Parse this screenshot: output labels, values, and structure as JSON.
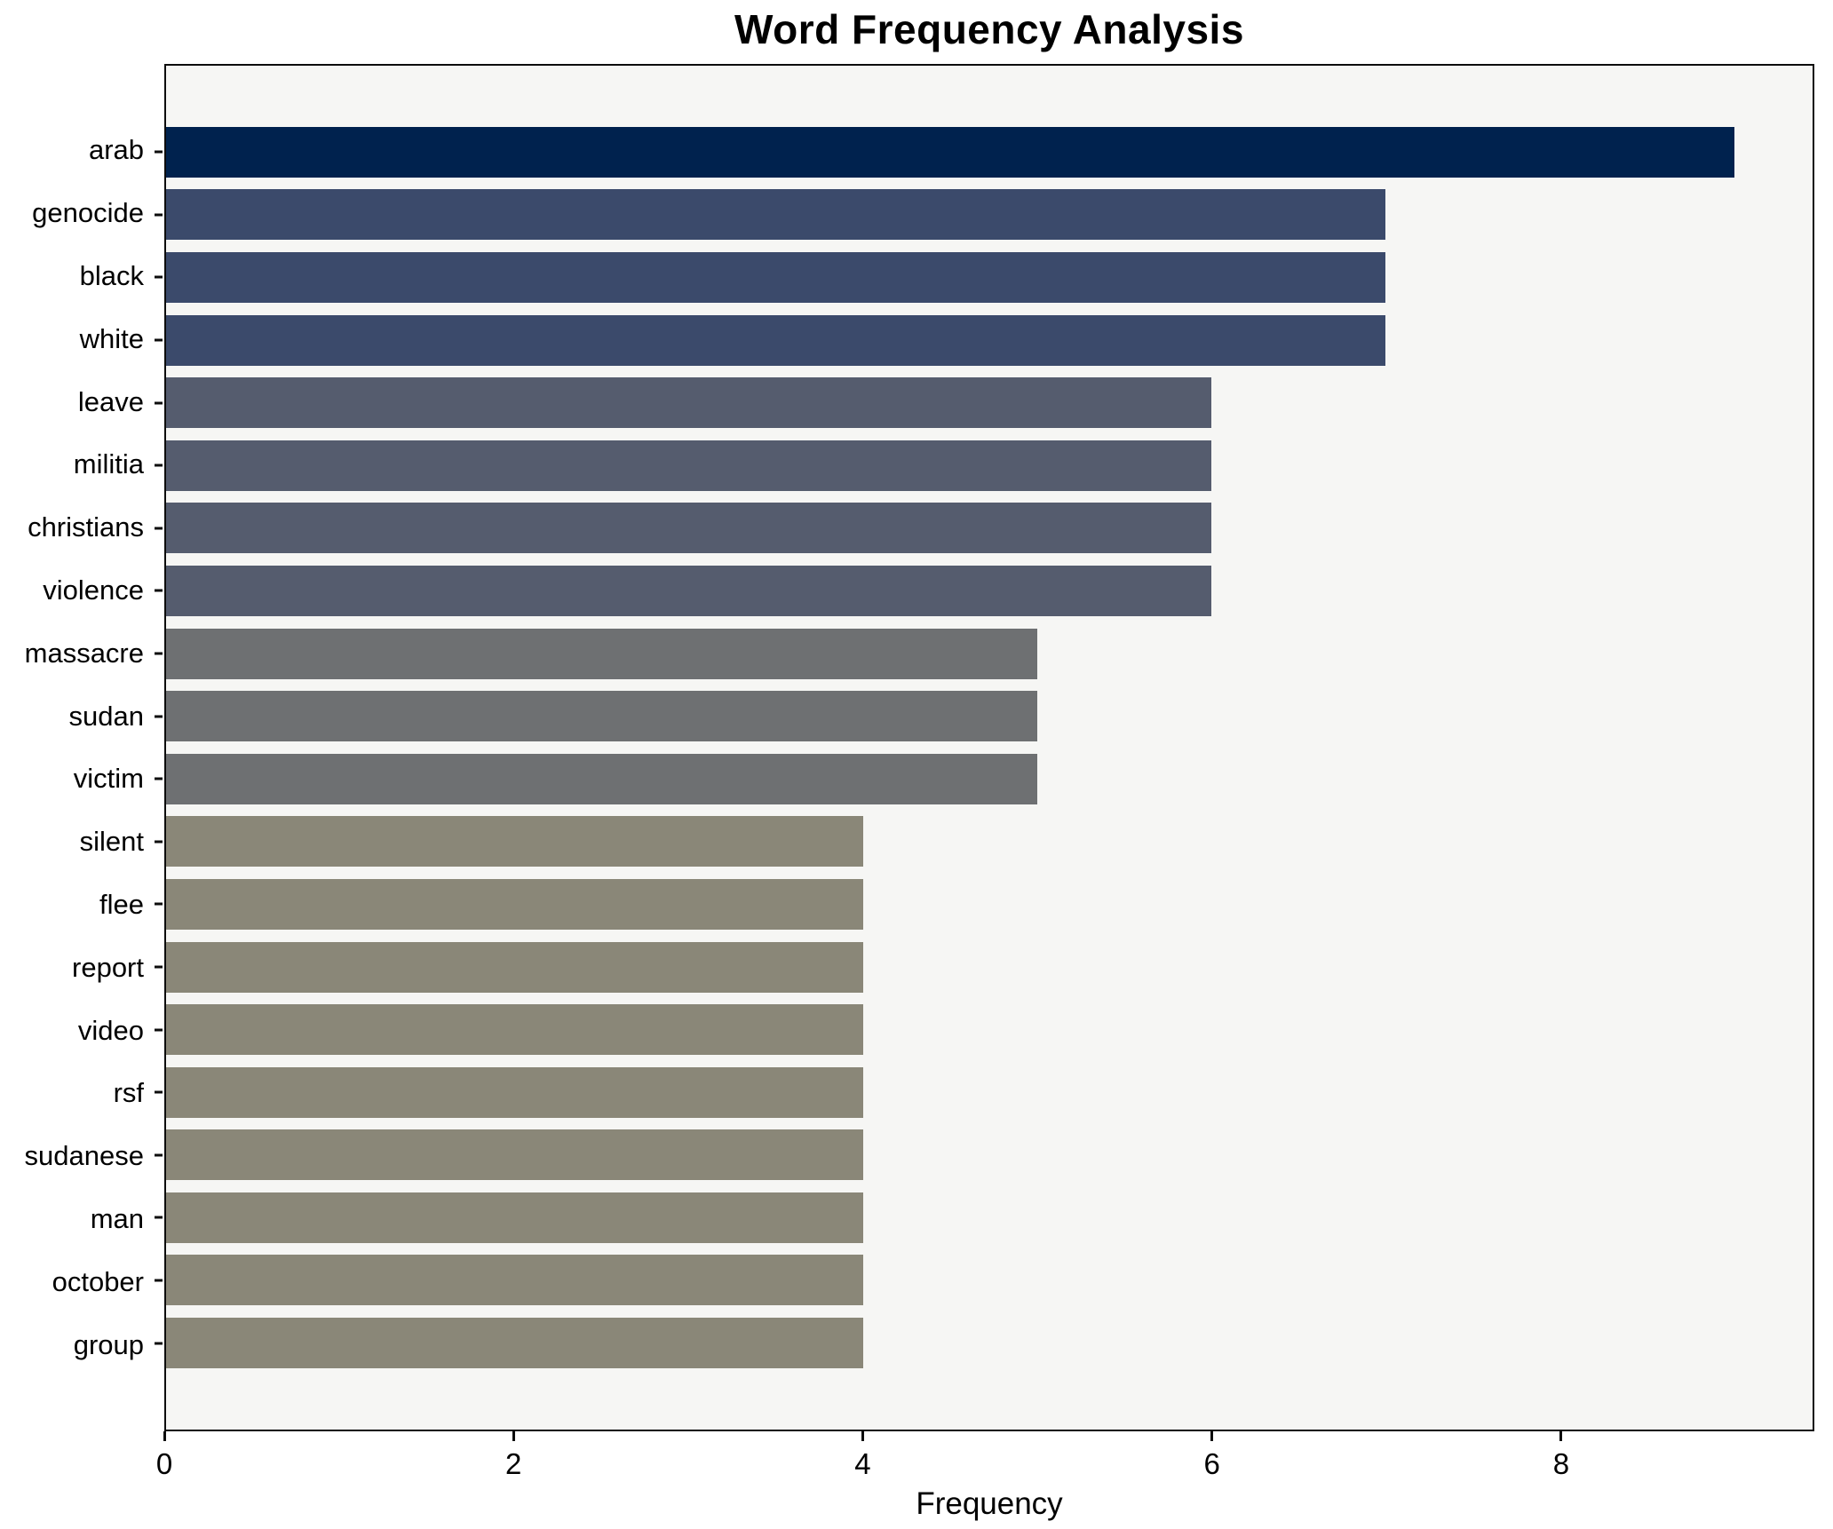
{
  "chart_data": {
    "type": "bar",
    "orientation": "horizontal",
    "title": "Word Frequency Analysis",
    "xlabel": "Frequency",
    "ylabel": "",
    "xlim": [
      0,
      9.45
    ],
    "xticks": [
      0,
      2,
      4,
      6,
      8
    ],
    "grid": false,
    "legend": "none",
    "categories": [
      "arab",
      "genocide",
      "black",
      "white",
      "leave",
      "militia",
      "christians",
      "violence",
      "massacre",
      "sudan",
      "victim",
      "silent",
      "flee",
      "report",
      "video",
      "rsf",
      "sudanese",
      "man",
      "october",
      "group"
    ],
    "values": [
      9,
      7,
      7,
      7,
      6,
      6,
      6,
      6,
      5,
      5,
      5,
      4,
      4,
      4,
      4,
      4,
      4,
      4,
      4,
      4
    ],
    "bar_colors": [
      "#00224e",
      "#3b4a6b",
      "#3b4a6b",
      "#3b4a6b",
      "#555c6e",
      "#555c6e",
      "#555c6e",
      "#555c6e",
      "#6e7072",
      "#6e7072",
      "#6e7072",
      "#8a8778",
      "#8a8778",
      "#8a8778",
      "#8a8778",
      "#8a8778",
      "#8a8778",
      "#8a8778",
      "#8a8778",
      "#8a8778"
    ]
  },
  "colors": {
    "figure_bg": "#ffffff",
    "plot_bg": "#f6f6f4",
    "spine": "#0d0d0d",
    "text": "#000000"
  }
}
